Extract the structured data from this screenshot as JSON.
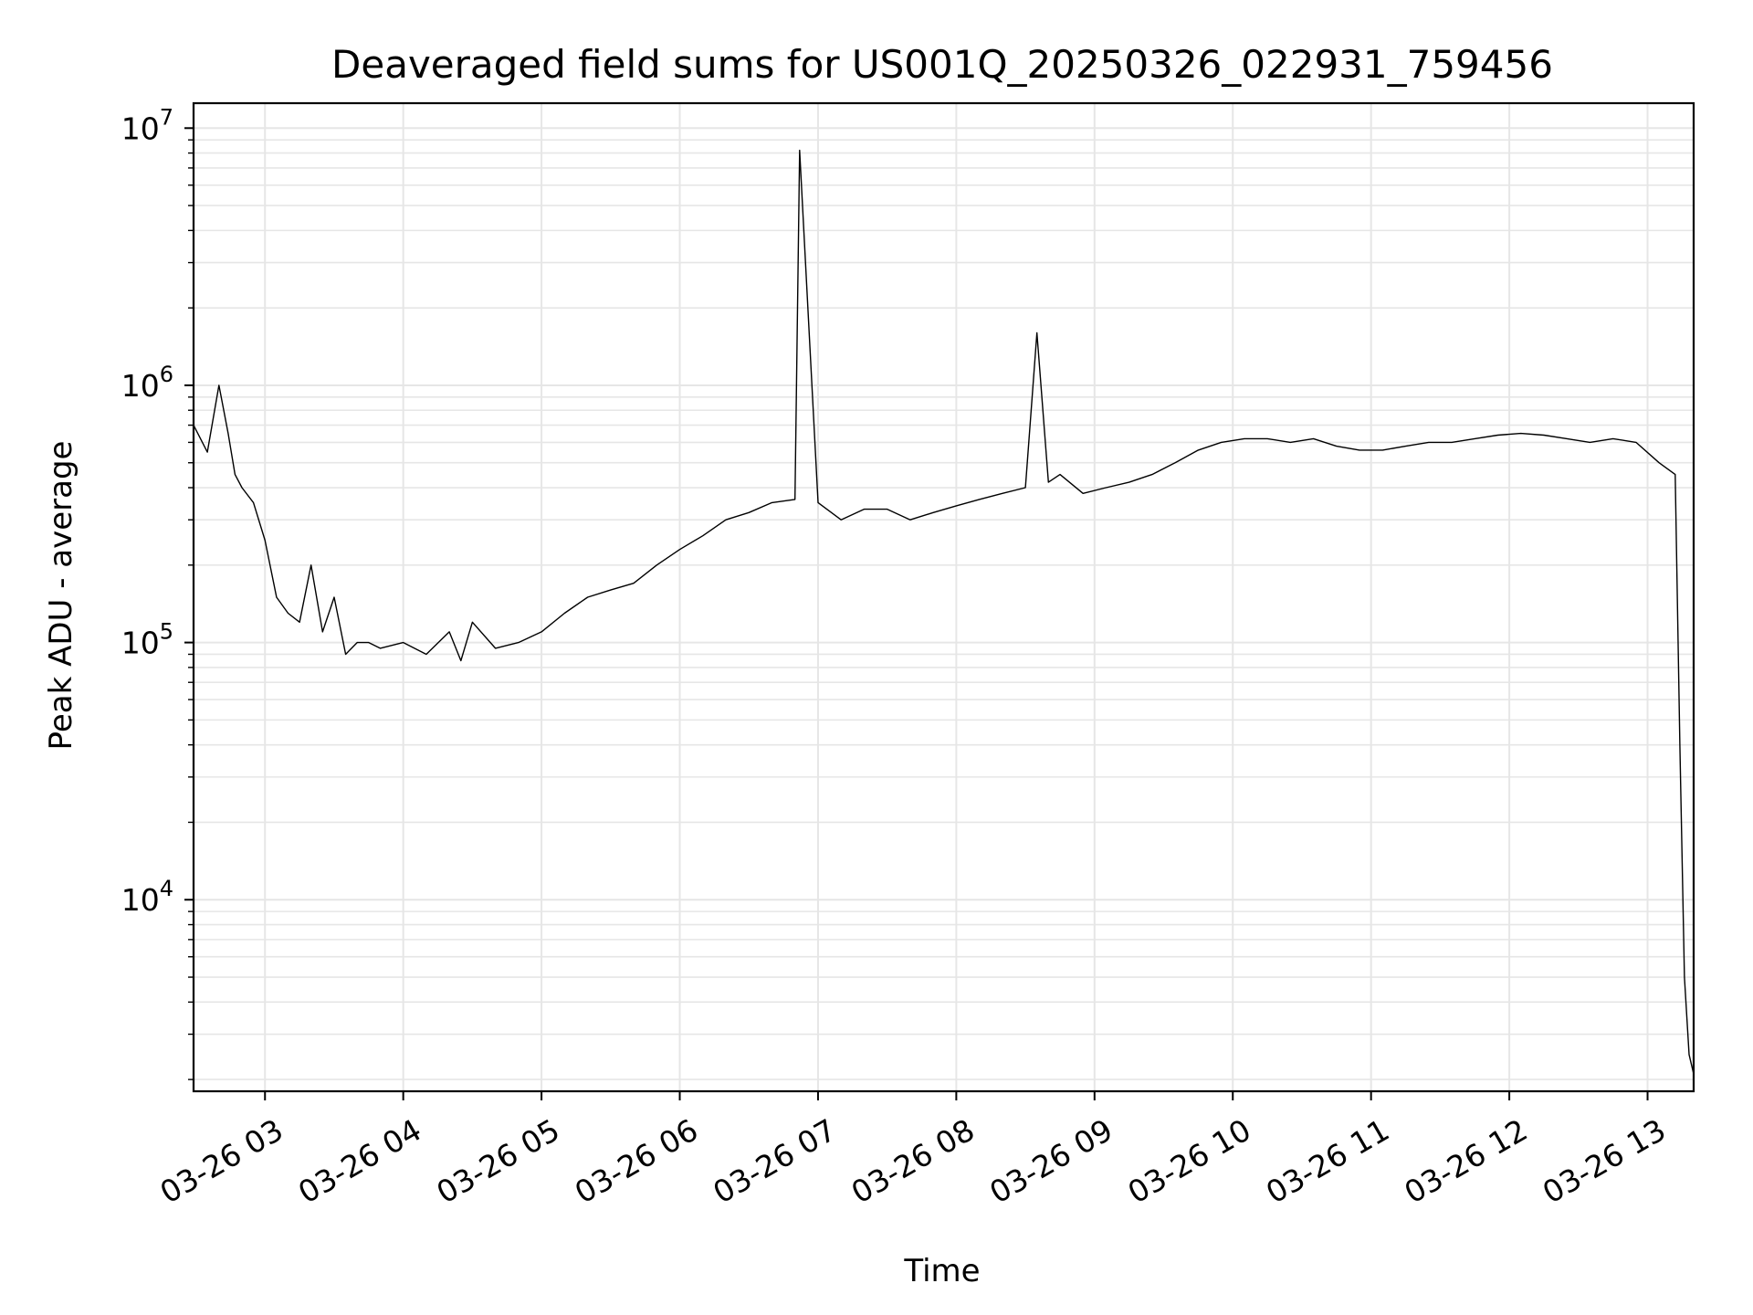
{
  "chart_data": {
    "type": "line",
    "title": "Deaveraged field sums for US001Q_20250326_022931_759456",
    "xlabel": "Time",
    "ylabel": "Peak ADU - average",
    "yscale": "log",
    "ylim": [
      1800,
      12500000
    ],
    "xlim": [
      "2025-03-26 02:29",
      "2025-03-26 13:20"
    ],
    "grid": true,
    "line_color": "#000000",
    "grid_color": "#e6e6e6",
    "x_ticks": [
      {
        "value": "2025-03-26 03:00",
        "label": "03-26 03"
      },
      {
        "value": "2025-03-26 04:00",
        "label": "03-26 04"
      },
      {
        "value": "2025-03-26 05:00",
        "label": "03-26 05"
      },
      {
        "value": "2025-03-26 06:00",
        "label": "03-26 06"
      },
      {
        "value": "2025-03-26 07:00",
        "label": "03-26 07"
      },
      {
        "value": "2025-03-26 08:00",
        "label": "03-26 08"
      },
      {
        "value": "2025-03-26 09:00",
        "label": "03-26 09"
      },
      {
        "value": "2025-03-26 10:00",
        "label": "03-26 10"
      },
      {
        "value": "2025-03-26 11:00",
        "label": "03-26 11"
      },
      {
        "value": "2025-03-26 12:00",
        "label": "03-26 12"
      },
      {
        "value": "2025-03-26 13:00",
        "label": "03-26 13"
      }
    ],
    "y_ticks": [
      {
        "value": 10000,
        "base": "10",
        "exp": "4"
      },
      {
        "value": 100000,
        "base": "10",
        "exp": "5"
      },
      {
        "value": 1000000,
        "base": "10",
        "exp": "6"
      },
      {
        "value": 10000000,
        "base": "10",
        "exp": "7"
      }
    ],
    "series": [
      {
        "x": [
          "02:29",
          "02:35",
          "02:40",
          "02:44",
          "02:47",
          "02:50",
          "02:55",
          "03:00",
          "03:05",
          "03:10",
          "03:15",
          "03:20",
          "03:25",
          "03:30",
          "03:35",
          "03:40",
          "03:45",
          "03:50",
          "04:00",
          "04:10",
          "04:20",
          "04:25",
          "04:30",
          "04:40",
          "04:50",
          "05:00",
          "05:10",
          "05:20",
          "05:30",
          "05:40",
          "05:50",
          "06:00",
          "06:10",
          "06:20",
          "06:30",
          "06:40",
          "06:50",
          "06:52",
          "07:00",
          "07:10",
          "07:20",
          "07:30",
          "07:40",
          "07:50",
          "08:00",
          "08:10",
          "08:20",
          "08:30",
          "08:35",
          "08:40",
          "08:45",
          "08:55",
          "09:05",
          "09:15",
          "09:25",
          "09:35",
          "09:45",
          "09:55",
          "10:05",
          "10:15",
          "10:25",
          "10:35",
          "10:45",
          "10:55",
          "11:05",
          "11:15",
          "11:25",
          "11:35",
          "11:45",
          "11:55",
          "12:05",
          "12:15",
          "12:25",
          "12:35",
          "12:45",
          "12:55",
          "13:05",
          "13:12",
          "13:14",
          "13:16",
          "13:18",
          "13:20"
        ],
        "y": [
          700000,
          550000,
          1000000,
          650000,
          450000,
          400000,
          350000,
          250000,
          150000,
          130000,
          120000,
          200000,
          110000,
          150000,
          90000,
          100000,
          100000,
          95000,
          100000,
          90000,
          110000,
          85000,
          120000,
          95000,
          100000,
          110000,
          130000,
          150000,
          160000,
          170000,
          200000,
          230000,
          260000,
          300000,
          320000,
          350000,
          360000,
          8200000,
          350000,
          300000,
          330000,
          330000,
          300000,
          320000,
          340000,
          360000,
          380000,
          400000,
          1600000,
          420000,
          450000,
          380000,
          400000,
          420000,
          450000,
          500000,
          560000,
          600000,
          620000,
          620000,
          600000,
          620000,
          580000,
          560000,
          560000,
          580000,
          600000,
          600000,
          620000,
          640000,
          650000,
          640000,
          620000,
          600000,
          620000,
          600000,
          500000,
          450000,
          40000,
          5000,
          2500,
          2100
        ]
      }
    ]
  }
}
